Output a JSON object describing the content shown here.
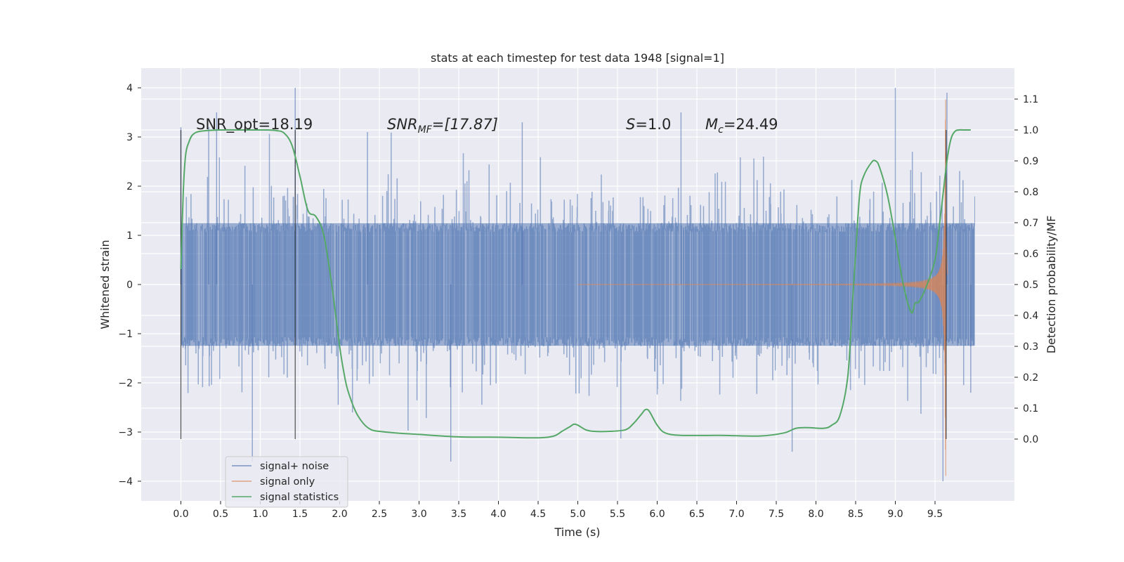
{
  "chart_data": {
    "type": "line",
    "title": "stats at each timestep for test data 1948 [signal=1]",
    "xlabel": "Time (s)",
    "ylabel": "Whitened strain",
    "y2label": "Detection probability/MF",
    "xlim": [
      -0.5,
      10.5
    ],
    "ylim": [
      -4.4,
      4.4
    ],
    "y2lim": [
      -0.2,
      1.2
    ],
    "xticks": [
      0.0,
      0.5,
      1.0,
      1.5,
      2.0,
      2.5,
      3.0,
      3.5,
      4.0,
      4.5,
      5.0,
      5.5,
      6.0,
      6.5,
      7.0,
      7.5,
      8.0,
      8.5,
      9.0,
      9.5
    ],
    "xtick_labels": [
      "0.0",
      "0.5",
      "1.0",
      "1.5",
      "2.0",
      "2.5",
      "3.0",
      "3.5",
      "4.0",
      "4.5",
      "5.0",
      "5.5",
      "6.0",
      "6.5",
      "7.0",
      "7.5",
      "8.0",
      "8.5",
      "9.0",
      "9.5"
    ],
    "yticks": [
      4,
      3,
      2,
      1,
      0,
      -1,
      -2,
      -3,
      -4
    ],
    "ytick_labels": [
      "4",
      "3",
      "2",
      "1",
      "0",
      "−1",
      "−2",
      "−3",
      "−4"
    ],
    "y2ticks": [
      1.1,
      1.0,
      0.9,
      0.8,
      0.7,
      0.6,
      0.5,
      0.4,
      0.3,
      0.2,
      0.1,
      0.0
    ],
    "y2tick_labels": [
      "1.1",
      "1.0",
      "0.9",
      "0.8",
      "0.7",
      "0.6",
      "0.5",
      "0.4",
      "0.3",
      "0.2",
      "0.1",
      "0.0"
    ],
    "grid": true,
    "legend_position": "lower-left",
    "annotations": {
      "snr_opt": "SNR_opt=18.19",
      "snr_mf_main": "SNR",
      "snr_mf_sub": "MF",
      "snr_mf_value": "=[17.87]",
      "s_main": "S",
      "s_value": "=1.0",
      "mc_main": "M",
      "mc_sub": "c",
      "mc_value": "=24.49"
    },
    "vertical_markers": [
      0.0,
      1.44,
      9.64
    ],
    "series": [
      {
        "name": "signal+ noise",
        "color": "#4c72b0",
        "axis": "left",
        "time_range": [
          0.0,
          10.0
        ],
        "core_amplitude": 1.25,
        "spike_extremes": [
          {
            "x": 0.0,
            "y": 3.2
          },
          {
            "x": 0.35,
            "y": 3.2
          },
          {
            "x": 0.45,
            "y": 3.5
          },
          {
            "x": 0.9,
            "y": -3.6
          },
          {
            "x": 1.44,
            "y": 4.0
          },
          {
            "x": 2.35,
            "y": 3.1
          },
          {
            "x": 3.4,
            "y": -3.6
          },
          {
            "x": 4.3,
            "y": 3.3
          },
          {
            "x": 6.3,
            "y": 3.5
          },
          {
            "x": 7.7,
            "y": -3.4
          },
          {
            "x": 9.0,
            "y": 4.0
          },
          {
            "x": 9.65,
            "y": 3.9
          },
          {
            "x": 9.6,
            "y": -4.0
          },
          {
            "x": 9.95,
            "y": -2.2
          }
        ]
      },
      {
        "name": "signal only",
        "color": "#dd8452",
        "axis": "left",
        "chirp_start": 5.0,
        "merger_time": 9.64,
        "peak_amplitude": 3.9
      },
      {
        "name": "signal statistics",
        "color": "#55a868",
        "axis": "right",
        "x": [
          0.0,
          0.03,
          0.06,
          0.1,
          0.15,
          0.25,
          0.5,
          0.8,
          1.0,
          1.1,
          1.2,
          1.3,
          1.4,
          1.5,
          1.6,
          1.7,
          1.8,
          1.9,
          2.0,
          2.05,
          2.1,
          2.2,
          2.3,
          2.4,
          2.5,
          2.7,
          3.0,
          3.5,
          4.0,
          4.5,
          4.7,
          4.8,
          4.9,
          4.95,
          5.0,
          5.1,
          5.2,
          5.4,
          5.6,
          5.7,
          5.8,
          5.85,
          5.9,
          6.0,
          6.1,
          6.3,
          6.8,
          7.3,
          7.6,
          7.75,
          7.9,
          8.1,
          8.2,
          8.3,
          8.4,
          8.45,
          8.5,
          8.55,
          8.6,
          8.7,
          8.75,
          8.8,
          8.9,
          9.0,
          9.1,
          9.2,
          9.25,
          9.3,
          9.4,
          9.5,
          9.55,
          9.6,
          9.65,
          9.7,
          9.75,
          9.8,
          9.85,
          9.9,
          9.95
        ],
        "values": [
          0.55,
          0.8,
          0.92,
          0.96,
          0.985,
          0.996,
          1.0,
          1.0,
          1.0,
          1.0,
          0.998,
          0.99,
          0.95,
          0.85,
          0.74,
          0.72,
          0.66,
          0.5,
          0.3,
          0.22,
          0.16,
          0.09,
          0.05,
          0.03,
          0.025,
          0.02,
          0.015,
          0.007,
          0.006,
          0.004,
          0.01,
          0.025,
          0.04,
          0.048,
          0.045,
          0.03,
          0.025,
          0.025,
          0.03,
          0.05,
          0.08,
          0.095,
          0.09,
          0.045,
          0.02,
          0.012,
          0.012,
          0.01,
          0.02,
          0.035,
          0.037,
          0.035,
          0.045,
          0.075,
          0.2,
          0.4,
          0.6,
          0.79,
          0.85,
          0.895,
          0.9,
          0.88,
          0.79,
          0.65,
          0.5,
          0.41,
          0.44,
          0.445,
          0.5,
          0.58,
          0.68,
          0.79,
          0.9,
          0.97,
          0.995,
          1.0,
          1.0,
          1.0,
          1.0
        ]
      }
    ]
  }
}
